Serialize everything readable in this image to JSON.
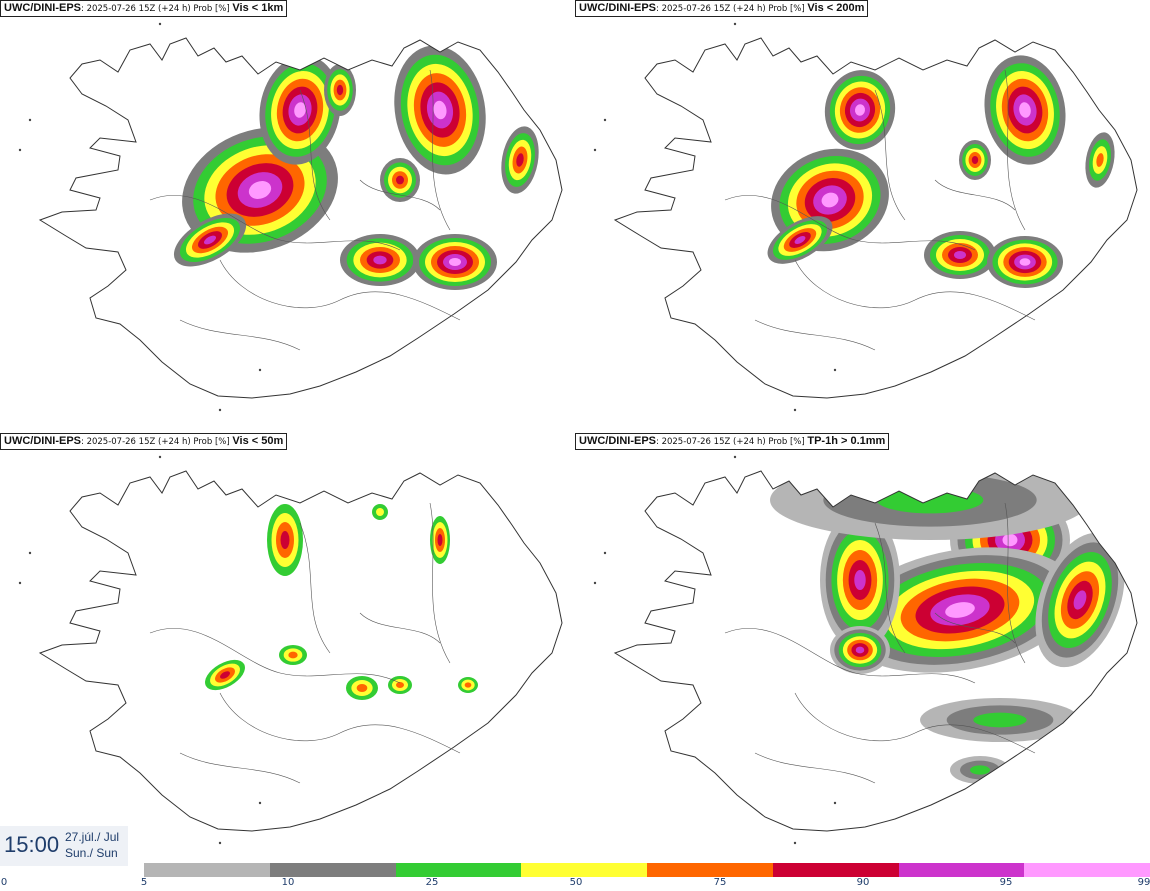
{
  "panels": [
    {
      "source": "UWC/DINI-EPS",
      "meta": ": 2025-07-26 15Z (+24 h) Prob [%] ",
      "variable": "Vis < 1km"
    },
    {
      "source": "UWC/DINI-EPS",
      "meta": ": 2025-07-26 15Z (+24 h) Prob [%] ",
      "variable": "Vis < 200m"
    },
    {
      "source": "UWC/DINI-EPS",
      "meta": ": 2025-07-26 15Z (+24 h) Prob [%] ",
      "variable": "Vis < 50m"
    },
    {
      "source": "UWC/DINI-EPS",
      "meta": ": 2025-07-26 15Z (+24 h) Prob [%] ",
      "variable": "TP-1h > 0.1mm"
    }
  ],
  "time": {
    "clock": "15:00",
    "date_line1": "27.júl./ Jul",
    "date_line2": "Sun./ Sun"
  },
  "colorbar": {
    "ticks": [
      "0",
      "5",
      "10",
      "25",
      "50",
      "75",
      "90",
      "95",
      "99"
    ],
    "colors": [
      "#b5b5b5",
      "#7d7d7d",
      "#33cc33",
      "#ffff33",
      "#ff6600",
      "#cc0033",
      "#cc33cc",
      "#ff99ff"
    ]
  }
}
